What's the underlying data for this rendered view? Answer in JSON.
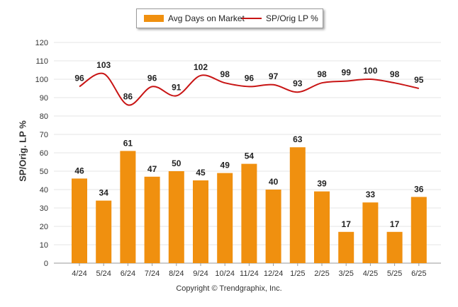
{
  "legend": {
    "bar_label": "Avg Days on Market",
    "line_label": "SP/Orig LP %"
  },
  "copyright": "Copyright © Trendgraphix, Inc.",
  "colors": {
    "bar": "#f0900f",
    "line": "#c81414",
    "grid": "#e6e6e6"
  },
  "chart_data": {
    "type": "bar",
    "ylabel": "SP/Orig. LP %",
    "ylim": [
      0,
      120
    ],
    "yticks": [
      0,
      10,
      20,
      30,
      40,
      50,
      60,
      70,
      80,
      90,
      100,
      110,
      120
    ],
    "grid": true,
    "legend_position": "top-center",
    "categories": [
      "4/24",
      "5/24",
      "6/24",
      "7/24",
      "8/24",
      "9/24",
      "10/24",
      "11/24",
      "12/24",
      "1/25",
      "2/25",
      "3/25",
      "4/25",
      "5/25",
      "6/25"
    ],
    "series": [
      {
        "name": "Avg Days on Market",
        "type": "bar",
        "values": [
          46,
          34,
          61,
          47,
          50,
          45,
          49,
          54,
          40,
          63,
          39,
          17,
          33,
          17,
          36
        ]
      },
      {
        "name": "SP/Orig LP %",
        "type": "line",
        "values": [
          96,
          103,
          86,
          96,
          91,
          102,
          98,
          96,
          97,
          93,
          98,
          99,
          100,
          98,
          95
        ]
      }
    ]
  }
}
